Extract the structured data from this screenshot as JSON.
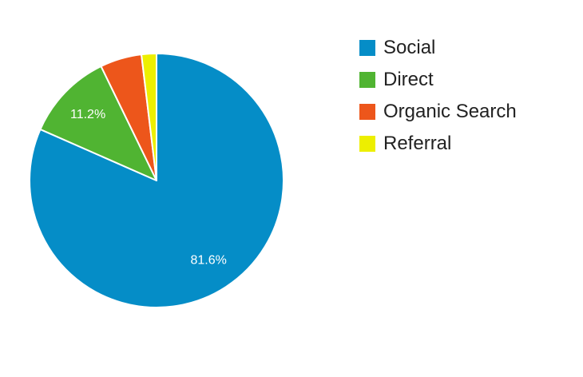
{
  "chart_data": {
    "type": "pie",
    "title": "",
    "categories": [
      "Social",
      "Direct",
      "Organic Search",
      "Referral"
    ],
    "values": [
      81.6,
      11.2,
      5.3,
      1.9
    ],
    "colors": [
      "#058DC7",
      "#50B432",
      "#ED561B",
      "#EDEF00"
    ],
    "slice_labels": [
      "81.6%",
      "11.2%",
      "",
      ""
    ],
    "start_angle": "12 o'clock",
    "direction": "clockwise",
    "legend_position": "right"
  }
}
